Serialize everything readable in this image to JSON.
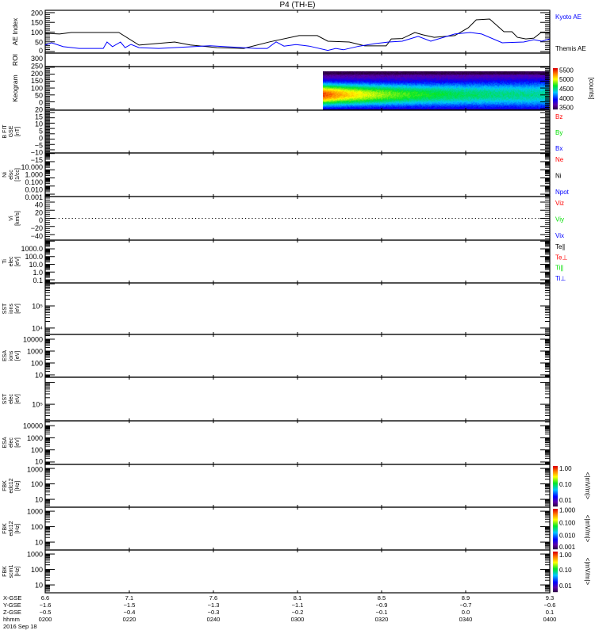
{
  "title": "P4 (TH-E)",
  "chart_data": {
    "type": "line",
    "title": "P4 (TH-E)",
    "x_unit": "minutes since 0200 UT",
    "xlim": [
      0,
      120
    ],
    "panels": [
      {
        "id": "ae",
        "label_lines": [
          "AE Index"
        ],
        "scale": "lin",
        "range": [
          -8,
          212
        ],
        "ticks": [
          {
            "v": 200,
            "t": "200"
          },
          {
            "v": 150,
            "t": "150"
          },
          {
            "v": 100,
            "t": "100"
          },
          {
            "v": 50,
            "t": "50"
          },
          {
            "v": 0,
            "t": "0"
          }
        ],
        "minor_step": 10,
        "right_labels": [
          {
            "t": "Kyoto AE",
            "c": "#0000ff"
          },
          {
            "t": "Themis AE",
            "c": "#000000"
          }
        ],
        "series": [
          {
            "name": "Themis AE",
            "color": "#000000",
            "x": [
              0,
              3.4,
              6.2,
              17.5,
              22.3,
              30.8,
              34.5,
              40.8,
              47.2,
              53.4,
              60.4,
              64.7,
              67.2,
              72.3,
              76,
              81.1,
              82.3,
              84.9,
              87.9,
              89.8,
              92.5,
              97.4,
              100.6,
              102.5,
              105.7,
              109.1,
              111,
              112.3,
              114.3,
              116.2,
              117.9,
              120
            ],
            "y": [
              94,
              90,
              98,
              98,
              33,
              49,
              34,
              20,
              16,
              50,
              82,
              82,
              53,
              49,
              29,
              29,
              65,
              67,
              98,
              86,
              73,
              82,
              122,
              163,
              167,
              102,
              102,
              73,
              65,
              69,
              98,
              96
            ]
          },
          {
            "name": "Kyoto AE",
            "color": "#0000ff",
            "x": [
              0,
              1.5,
              4.3,
              8.1,
              13.8,
              14.7,
              16,
              17.9,
              19,
              20.4,
              22.3,
              27,
              39.2,
              50.2,
              52.8,
              54.9,
              56.8,
              59.6,
              62.8,
              67.2,
              69.1,
              70.9,
              74.7,
              78.5,
              81.7,
              84.9,
              88.7,
              91.7,
              97.4,
              101.1,
              103.8,
              108.7,
              113.8,
              116.2,
              118.1,
              120
            ],
            "y": [
              33,
              45,
              25,
              16,
              16,
              49,
              25,
              49,
              20,
              37,
              20,
              16,
              30,
              16,
              16,
              50,
              28,
              36,
              28,
              6,
              16,
              9,
              28,
              41,
              49,
              53,
              78,
              53,
              90,
              98,
              90,
              45,
              49,
              61,
              53,
              65
            ]
          }
        ]
      },
      {
        "id": "roi",
        "label_lines": [
          "ROI"
        ],
        "scale": "none",
        "range": [
          0,
          1
        ],
        "ticks": [],
        "right_labels": []
      },
      {
        "id": "keogram",
        "label_lines": [
          "Keogram"
        ],
        "scale": "lin",
        "range": [
          -10,
          305
        ],
        "ticks": [
          {
            "v": 300,
            "t": "300"
          },
          {
            "v": 250,
            "t": "250"
          },
          {
            "v": 200,
            "t": "200"
          },
          {
            "v": 150,
            "t": "150"
          },
          {
            "v": 100,
            "t": "100"
          },
          {
            "v": 50,
            "t": "50"
          },
          {
            "v": 0,
            "t": "0"
          }
        ],
        "minor_step": 10,
        "right_labels": [],
        "colorbar": {
          "ticks": [
            {
              "v": 5500,
              "t": "5500"
            },
            {
              "v": 5000,
              "t": "5000"
            },
            {
              "v": 4500,
              "t": "4500"
            },
            {
              "v": 4000,
              "t": "4000"
            },
            {
              "v": 3500,
              "t": "3500"
            }
          ],
          "range": [
            3400,
            5600
          ],
          "unit": "[counts]",
          "scale": "lin"
        },
        "image": {
          "start_min": 66,
          "y_range": [
            0,
            270
          ],
          "peak_y": 110,
          "peak_counts": 5450,
          "end_counts": 4450,
          "bg_counts": 3500
        }
      },
      {
        "id": "bfit",
        "label_lines": [
          "B FIT",
          "GSE",
          "[nT]"
        ],
        "scale": "lin",
        "range": [
          -18,
          22.2
        ],
        "ticks": [
          {
            "v": 20,
            "t": "20"
          },
          {
            "v": 15,
            "t": "15"
          },
          {
            "v": 10,
            "t": "10"
          },
          {
            "v": 5,
            "t": "5"
          },
          {
            "v": 0,
            "t": "0"
          },
          {
            "v": -5,
            "t": "−5"
          },
          {
            "v": -10,
            "t": "−10"
          },
          {
            "v": -15,
            "t": "−15"
          }
        ],
        "minor_step": 1,
        "right_labels": [
          {
            "t": "Bz",
            "c": "#ff0000"
          },
          {
            "t": "By",
            "c": "#00dd00"
          },
          {
            "t": "Bx",
            "c": "#0000ff"
          }
        ]
      },
      {
        "id": "ni",
        "label_lines": [
          "Ni",
          "elsc",
          "[1/cc]"
        ],
        "scale": "log",
        "range": [
          -3.29,
          2.07
        ],
        "ticks": [
          {
            "v": 10,
            "t": "10.000"
          },
          {
            "v": 1,
            "t": "1.000"
          },
          {
            "v": 0.1,
            "t": "0.100"
          },
          {
            "v": 0.01,
            "t": "0.010"
          },
          {
            "v": 0.001,
            "t": "0.001"
          }
        ],
        "right_labels": [
          {
            "t": "Ne",
            "c": "#ff0000"
          },
          {
            "t": "Ni",
            "c": "#000000"
          },
          {
            "t": "Npot",
            "c": "#0000ff"
          }
        ]
      },
      {
        "id": "vi",
        "label_lines": [
          "Vi",
          "[km/s]"
        ],
        "scale": "lin",
        "range": [
          -53.7,
          53.7
        ],
        "ticks": [
          {
            "v": 40,
            "t": "40"
          },
          {
            "v": 20,
            "t": "20"
          },
          {
            "v": 0,
            "t": "0"
          },
          {
            "v": -20,
            "t": "−20"
          },
          {
            "v": -40,
            "t": "−40"
          }
        ],
        "minor_step": 5,
        "zero_line": true,
        "right_labels": [
          {
            "t": "Viz",
            "c": "#ff0000"
          },
          {
            "t": "Viy",
            "c": "#00dd00"
          },
          {
            "t": "Vix",
            "c": "#0000ff"
          }
        ]
      },
      {
        "id": "ti",
        "label_lines": [
          "Ti",
          "elec",
          "[eV]"
        ],
        "scale": "log",
        "range": [
          -1.41,
          4.13
        ],
        "ticks": [
          {
            "v": 1000,
            "t": "1000.0"
          },
          {
            "v": 100,
            "t": "100.0"
          },
          {
            "v": 10,
            "t": "10.0"
          },
          {
            "v": 1,
            "t": "1.0"
          },
          {
            "v": 0.1,
            "t": "0.1"
          }
        ],
        "right_labels": [
          {
            "t": "Te∥",
            "c": "#000000"
          },
          {
            "t": "Te⊥",
            "c": "#ff0000"
          },
          {
            "t": "Ti∥",
            "c": "#00dd00"
          },
          {
            "t": "Ti⊥",
            "c": "#0000ff"
          }
        ]
      },
      {
        "id": "sst_i",
        "label_lines": [
          "SST",
          "ions",
          "[eV]"
        ],
        "scale": "log",
        "range": [
          3.71,
          6.04
        ],
        "ticks": [
          {
            "v": 100000,
            "t": "10⁵"
          },
          {
            "v": 10000,
            "t": "10⁴"
          }
        ],
        "right_labels": []
      },
      {
        "id": "esa_i",
        "label_lines": [
          "ESA",
          "ions",
          "[eV]"
        ],
        "scale": "log",
        "range": [
          0.8,
          4.4
        ],
        "ticks": [
          {
            "v": 10000,
            "t": "10000"
          },
          {
            "v": 1000,
            "t": "1000"
          },
          {
            "v": 100,
            "t": "100"
          },
          {
            "v": 10,
            "t": "10"
          }
        ],
        "right_labels": []
      },
      {
        "id": "sst_e",
        "label_lines": [
          "SST",
          "elec",
          "[eV]"
        ],
        "scale": "log",
        "range": [
          4.24,
          6.24
        ],
        "ticks": [
          {
            "v": 100000,
            "t": "10⁵"
          }
        ],
        "right_labels": []
      },
      {
        "id": "esa_e",
        "label_lines": [
          "ESA",
          "elec",
          "[eV]"
        ],
        "scale": "log",
        "range": [
          0.8,
          4.4
        ],
        "ticks": [
          {
            "v": 10000,
            "t": "10000"
          },
          {
            "v": 1000,
            "t": "1000"
          },
          {
            "v": 100,
            "t": "100"
          },
          {
            "v": 10,
            "t": "10"
          }
        ],
        "right_labels": []
      },
      {
        "id": "fbk1",
        "label_lines": [
          "FBK",
          "edc12",
          "[Hz]"
        ],
        "scale": "log",
        "range": [
          0.49,
          3.26
        ],
        "ticks": [
          {
            "v": 1000,
            "t": "1000"
          },
          {
            "v": 100,
            "t": "100"
          },
          {
            "v": 10,
            "t": "10"
          }
        ],
        "right_labels": [],
        "colorbar": {
          "ticks": [
            {
              "v": 1,
              "t": "1.00"
            },
            {
              "v": 0.1,
              "t": "0.10"
            },
            {
              "v": 0.01,
              "t": "0.01"
            }
          ],
          "range": [
            -2.4,
            0.15
          ],
          "unit": "<|mV/m|>",
          "scale": "log"
        }
      },
      {
        "id": "fbk2",
        "label_lines": [
          "FBK",
          "edc12",
          "[Hz]"
        ],
        "scale": "log",
        "range": [
          0.49,
          3.26
        ],
        "ticks": [
          {
            "v": 1000,
            "t": "1000"
          },
          {
            "v": 100,
            "t": "100"
          },
          {
            "v": 10,
            "t": "10"
          }
        ],
        "right_labels": [],
        "colorbar": {
          "ticks": [
            {
              "v": 1,
              "t": "1.000"
            },
            {
              "v": 0.1,
              "t": "0.100"
            },
            {
              "v": 0.01,
              "t": "0.010"
            },
            {
              "v": 0.001,
              "t": "0.001"
            }
          ],
          "range": [
            -3.1,
            0.1
          ],
          "unit": "<|mV/m|>",
          "scale": "log"
        }
      },
      {
        "id": "fbk3",
        "label_lines": [
          "FBK",
          "scm1",
          "[Hz]"
        ],
        "scale": "log",
        "range": [
          0.49,
          3.26
        ],
        "ticks": [
          {
            "v": 1000,
            "t": "1000"
          },
          {
            "v": 100,
            "t": "100"
          },
          {
            "v": 10,
            "t": "10"
          }
        ],
        "right_labels": [],
        "colorbar": {
          "ticks": [
            {
              "v": 1,
              "t": "1.00"
            },
            {
              "v": 0.1,
              "t": "0.10"
            },
            {
              "v": 0.01,
              "t": "0.01"
            }
          ],
          "range": [
            -2.4,
            0.15
          ],
          "unit": "<|mV/m|>",
          "scale": "log"
        }
      }
    ],
    "x_axis": {
      "tick_minutes": [
        0,
        20,
        40,
        60,
        80,
        100,
        120
      ],
      "rows": [
        {
          "label": "X-GSE",
          "values": [
            "6.6",
            "7.1",
            "7.6",
            "8.1",
            "8.5",
            "8.9",
            "9.3"
          ]
        },
        {
          "label": "Y-GSE",
          "values": [
            "−1.6",
            "−1.5",
            "−1.3",
            "−1.1",
            "−0.9",
            "−0.7",
            "−0.6"
          ]
        },
        {
          "label": "Z-GSE",
          "values": [
            "−0.5",
            "−0.4",
            "−0.3",
            "−0.2",
            "−0.1",
            "0.0",
            "0.1"
          ]
        },
        {
          "label": "hhmm",
          "values": [
            "0200",
            "0220",
            "0240",
            "0300",
            "0320",
            "0340",
            "0400"
          ]
        }
      ],
      "date": "2016 Sep 18"
    }
  }
}
